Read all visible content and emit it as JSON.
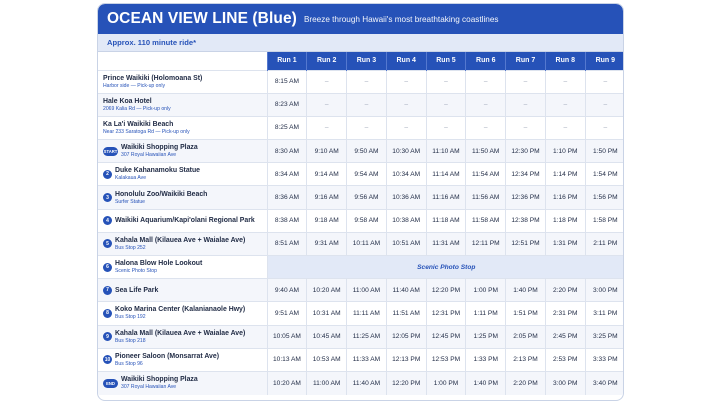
{
  "header": {
    "title": "OCEAN VIEW LINE (Blue)",
    "subtitle": "Breeze through Hawaii's most breathtaking coastlines"
  },
  "ride_note": "Approx. 110 minute ride*",
  "runs": [
    "Run 1",
    "Run 2",
    "Run 3",
    "Run 4",
    "Run 5",
    "Run 6",
    "Run 7",
    "Run 8",
    "Run 9"
  ],
  "stops": [
    {
      "badge": "",
      "name": "Prince Waikiki (Holomoana St)",
      "note": "Harbor side — Pick-up only",
      "times": [
        "8:15 AM",
        "–",
        "–",
        "–",
        "–",
        "–",
        "–",
        "–",
        "–"
      ]
    },
    {
      "badge": "",
      "name": "Hale Koa Hotel",
      "note": "2069 Kalia Rd — Pick-up only",
      "times": [
        "8:23 AM",
        "–",
        "–",
        "–",
        "–",
        "–",
        "–",
        "–",
        "–"
      ]
    },
    {
      "badge": "",
      "name": "Ka La'i Waikiki Beach",
      "note": "Near 233 Saratoga Rd — Pick-up only",
      "times": [
        "8:25 AM",
        "–",
        "–",
        "–",
        "–",
        "–",
        "–",
        "–",
        "–"
      ]
    },
    {
      "badge": "START",
      "name": "Waikiki Shopping Plaza",
      "note": "307 Royal Hawaiian Ave",
      "times": [
        "8:30 AM",
        "9:10 AM",
        "9:50 AM",
        "10:30 AM",
        "11:10 AM",
        "11:50 AM",
        "12:30 PM",
        "1:10 PM",
        "1:50 PM"
      ]
    },
    {
      "badge": "2",
      "name": "Duke Kahanamoku Statue",
      "note": "Kalakaua Ave",
      "times": [
        "8:34 AM",
        "9:14 AM",
        "9:54 AM",
        "10:34 AM",
        "11:14 AM",
        "11:54 AM",
        "12:34 PM",
        "1:14 PM",
        "1:54 PM"
      ]
    },
    {
      "badge": "3",
      "name": "Honolulu Zoo/Waikiki Beach",
      "note": "Surfer Statue",
      "times": [
        "8:36 AM",
        "9:16 AM",
        "9:56 AM",
        "10:36 AM",
        "11:16 AM",
        "11:56 AM",
        "12:36 PM",
        "1:16 PM",
        "1:56 PM"
      ]
    },
    {
      "badge": "4",
      "name": "Waikiki Aquarium/Kapi'olani Regional Park",
      "note": "",
      "times": [
        "8:38 AM",
        "9:18 AM",
        "9:58 AM",
        "10:38 AM",
        "11:18 AM",
        "11:58 AM",
        "12:38 PM",
        "1:18 PM",
        "1:58 PM"
      ]
    },
    {
      "badge": "5",
      "name": "Kahala Mall (Kilauea Ave + Waialae Ave)",
      "note": "Bus Stop 252",
      "times": [
        "8:51 AM",
        "9:31 AM",
        "10:11 AM",
        "10:51 AM",
        "11:31 AM",
        "12:11 PM",
        "12:51 PM",
        "1:31 PM",
        "2:11 PM"
      ]
    },
    {
      "badge": "6",
      "name": "Halona Blow Hole Lookout",
      "note": "Scenic Photo Stop",
      "scenic": "Scenic Photo Stop",
      "times": []
    },
    {
      "badge": "7",
      "name": "Sea Life Park",
      "note": "",
      "times": [
        "9:40 AM",
        "10:20 AM",
        "11:00 AM",
        "11:40 AM",
        "12:20 PM",
        "1:00 PM",
        "1:40 PM",
        "2:20 PM",
        "3:00 PM"
      ]
    },
    {
      "badge": "8",
      "name": "Koko Marina Center (Kalanianaole Hwy)",
      "note": "Bus Stop 192",
      "times": [
        "9:51 AM",
        "10:31 AM",
        "11:11 AM",
        "11:51 AM",
        "12:31 PM",
        "1:11 PM",
        "1:51 PM",
        "2:31 PM",
        "3:11 PM"
      ]
    },
    {
      "badge": "9",
      "name": "Kahala Mall (Kilauea Ave + Waialae Ave)",
      "note": "Bus Stop 218",
      "times": [
        "10:05 AM",
        "10:45 AM",
        "11:25 AM",
        "12:05 PM",
        "12:45 PM",
        "1:25 PM",
        "2:05 PM",
        "2:45 PM",
        "3:25 PM"
      ]
    },
    {
      "badge": "10",
      "name": "Pioneer Saloon (Monsarrat Ave)",
      "note": "Bus Stop 96",
      "times": [
        "10:13 AM",
        "10:53 AM",
        "11:33 AM",
        "12:13 PM",
        "12:53 PM",
        "1:33 PM",
        "2:13 PM",
        "2:53 PM",
        "3:33 PM"
      ]
    },
    {
      "badge": "END",
      "name": "Waikiki Shopping Plaza",
      "note": "307 Royal Hawaiian Ave",
      "times": [
        "10:20 AM",
        "11:00 AM",
        "11:40 AM",
        "12:20 PM",
        "1:00 PM",
        "1:40 PM",
        "2:20 PM",
        "3:00 PM",
        "3:40 PM"
      ]
    }
  ],
  "colors": {
    "brand": "#2652b8",
    "band": "#e2e9f7"
  }
}
